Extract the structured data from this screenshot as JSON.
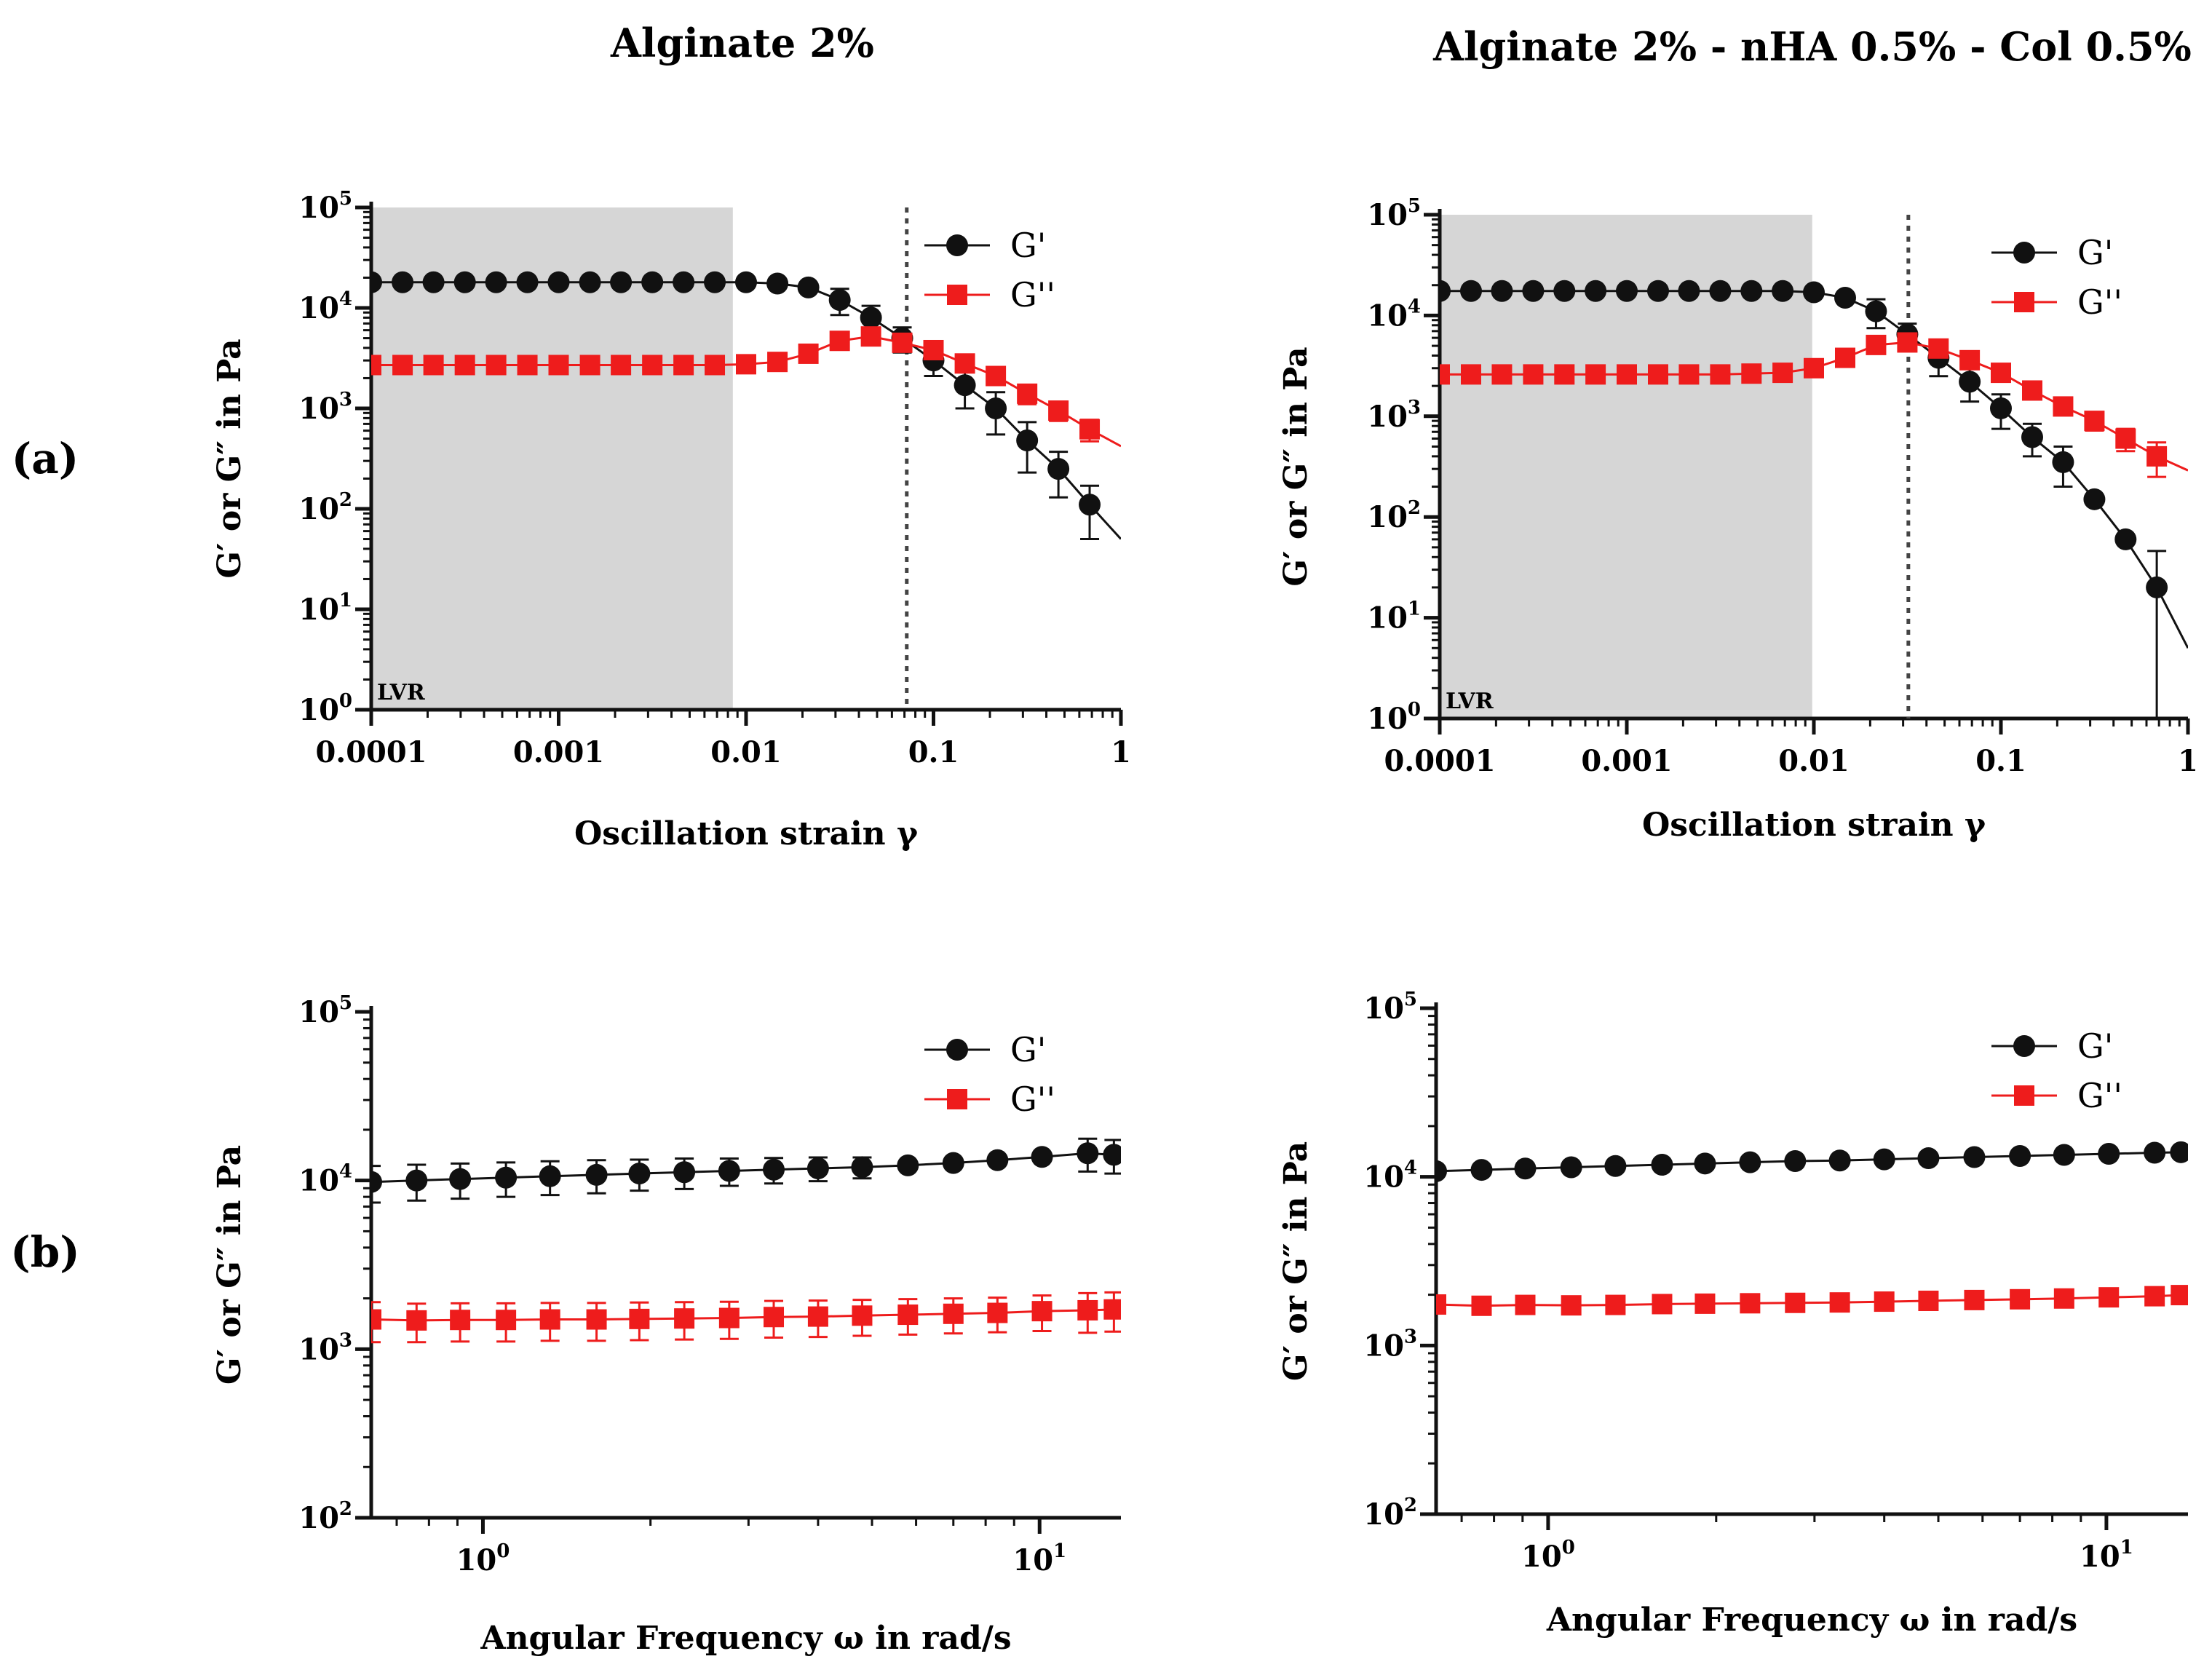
{
  "figure": {
    "column_titles": [
      "Alginate 2%",
      "Alginate 2% - nHA 0.5% - Col 0.5%"
    ],
    "row_labels": [
      "(a)",
      "(b)"
    ]
  },
  "colors": {
    "g_prime": "#111111",
    "g_double_prime": "#ee1c1c",
    "lvr_shade": "#d6d6d6",
    "axis": "#111111"
  },
  "chart_data": [
    {
      "type": "scatter",
      "row": "(a)",
      "column_title": "Alginate 2%",
      "xscale": "log",
      "yscale": "log",
      "xlim": [
        0.0001,
        1
      ],
      "ylim": [
        1,
        100000
      ],
      "xticks": [
        0.0001,
        0.001,
        0.01,
        0.1,
        1
      ],
      "xtick_labels": [
        "0.0001",
        "0.001",
        "0.01",
        "0.1",
        "1"
      ],
      "yticks": [
        1,
        10,
        100,
        1000,
        10000,
        100000
      ],
      "ytick_labels": [
        {
          "base": "10",
          "exp": "0"
        },
        {
          "base": "10",
          "exp": "1"
        },
        {
          "base": "10",
          "exp": "2"
        },
        {
          "base": "10",
          "exp": "3"
        },
        {
          "base": "10",
          "exp": "4"
        },
        {
          "base": "10",
          "exp": "5"
        }
      ],
      "xlabel": "Oscillation strain γ",
      "ylabel": "G′ or G″ in Pa",
      "legend": "top-right",
      "shaded_region": {
        "x": [
          0.0001,
          0.0085
        ],
        "label": "LVR"
      },
      "vline": {
        "x": 0.072,
        "style": "dotted"
      },
      "series": [
        {
          "name": "G'",
          "marker": "circle",
          "color": "#111111",
          "x": [
            0.0001,
            0.000147,
            0.000215,
            0.000316,
            0.000464,
            0.000681,
            0.001,
            0.00147,
            0.00215,
            0.00316,
            0.00464,
            0.00681,
            0.01,
            0.0147,
            0.0215,
            0.0316,
            0.0464,
            0.0681,
            0.1,
            0.147,
            0.215,
            0.316,
            0.464,
            0.681
          ],
          "y": [
            18000,
            18000,
            18000,
            18000,
            18000,
            18000,
            18000,
            18000,
            18000,
            18000,
            18000,
            18000,
            18000,
            17500,
            16000,
            12000,
            8000,
            5000,
            3000,
            1700,
            1000,
            480,
            250,
            110
          ],
          "err": [
            0,
            0,
            0,
            0,
            0,
            0,
            0,
            0,
            0,
            0,
            0,
            0,
            0,
            0,
            0,
            3500,
            2500,
            1400,
            900,
            700,
            450,
            250,
            120,
            60
          ],
          "fit_end": [
            1,
            50
          ]
        },
        {
          "name": "G''",
          "marker": "square",
          "color": "#ee1c1c",
          "x": [
            0.0001,
            0.000147,
            0.000215,
            0.000316,
            0.000464,
            0.000681,
            0.001,
            0.00147,
            0.00215,
            0.00316,
            0.00464,
            0.00681,
            0.01,
            0.0147,
            0.0215,
            0.0316,
            0.0464,
            0.0681,
            0.1,
            0.147,
            0.215,
            0.316,
            0.464,
            0.681
          ],
          "y": [
            2700,
            2700,
            2700,
            2700,
            2700,
            2700,
            2700,
            2700,
            2700,
            2700,
            2700,
            2700,
            2750,
            2900,
            3500,
            4700,
            5200,
            4500,
            3800,
            2800,
            2100,
            1400,
            950,
            620
          ],
          "err": [
            0,
            0,
            0,
            0,
            0,
            0,
            0,
            0,
            0,
            0,
            0,
            0,
            0,
            0,
            0,
            600,
            700,
            700,
            500,
            500,
            350,
            300,
            200,
            150
          ],
          "fit_end": [
            1,
            420
          ]
        }
      ]
    },
    {
      "type": "scatter",
      "row": "(a)",
      "column_title": "Alginate 2% - nHA 0.5% - Col 0.5%",
      "xscale": "log",
      "yscale": "log",
      "xlim": [
        0.0001,
        1
      ],
      "ylim": [
        1,
        100000
      ],
      "xticks": [
        0.0001,
        0.001,
        0.01,
        0.1,
        1
      ],
      "xtick_labels": [
        "0.0001",
        "0.001",
        "0.01",
        "0.1",
        "1"
      ],
      "yticks": [
        1,
        10,
        100,
        1000,
        10000,
        100000
      ],
      "ytick_labels": [
        {
          "base": "10",
          "exp": "0"
        },
        {
          "base": "10",
          "exp": "1"
        },
        {
          "base": "10",
          "exp": "2"
        },
        {
          "base": "10",
          "exp": "3"
        },
        {
          "base": "10",
          "exp": "4"
        },
        {
          "base": "10",
          "exp": "5"
        }
      ],
      "xlabel": "Oscillation strain γ",
      "ylabel": "G′ or G″ in Pa",
      "legend": "top-right",
      "shaded_region": {
        "x": [
          0.0001,
          0.0098
        ],
        "label": "LVR"
      },
      "vline": {
        "x": 0.032,
        "style": "dotted"
      },
      "series": [
        {
          "name": "G'",
          "marker": "circle",
          "color": "#111111",
          "x": [
            0.0001,
            0.000147,
            0.000215,
            0.000316,
            0.000464,
            0.000681,
            0.001,
            0.00147,
            0.00215,
            0.00316,
            0.00464,
            0.00681,
            0.01,
            0.0147,
            0.0215,
            0.0316,
            0.0464,
            0.0681,
            0.1,
            0.147,
            0.215,
            0.316,
            0.464,
            0.681
          ],
          "y": [
            17500,
            17500,
            17500,
            17500,
            17500,
            17500,
            17500,
            17500,
            17500,
            17500,
            17500,
            17500,
            17000,
            15000,
            11000,
            6500,
            3800,
            2200,
            1200,
            620,
            350,
            150,
            60,
            20
          ],
          "err": [
            0,
            0,
            0,
            0,
            0,
            0,
            0,
            0,
            0,
            0,
            0,
            0,
            0,
            0,
            3500,
            1800,
            1300,
            800,
            450,
            220,
            150,
            0,
            0,
            26
          ],
          "fit_end": [
            1,
            5
          ]
        },
        {
          "name": "G''",
          "marker": "square",
          "color": "#ee1c1c",
          "x": [
            0.0001,
            0.000147,
            0.000215,
            0.000316,
            0.000464,
            0.000681,
            0.001,
            0.00147,
            0.00215,
            0.00316,
            0.00464,
            0.00681,
            0.01,
            0.0147,
            0.0215,
            0.0316,
            0.0464,
            0.0681,
            0.1,
            0.147,
            0.215,
            0.316,
            0.464,
            0.681
          ],
          "y": [
            2600,
            2600,
            2600,
            2600,
            2600,
            2600,
            2600,
            2600,
            2600,
            2600,
            2650,
            2700,
            3000,
            3800,
            5100,
            5400,
            4700,
            3600,
            2700,
            1800,
            1250,
            900,
            600,
            400
          ],
          "err": [
            0,
            0,
            0,
            0,
            0,
            0,
            0,
            0,
            0,
            0,
            0,
            0,
            0,
            600,
            800,
            800,
            600,
            500,
            400,
            300,
            200,
            180,
            150,
            150
          ],
          "fit_end": [
            1,
            290
          ]
        }
      ]
    },
    {
      "type": "scatter",
      "row": "(b)",
      "column_title": "Alginate 2%",
      "xscale": "log",
      "yscale": "log",
      "xlim": [
        0.63,
        14
      ],
      "ylim": [
        100,
        100000
      ],
      "xticks": [
        1,
        10
      ],
      "xtick_labels": [
        {
          "base": "10",
          "exp": "0"
        },
        {
          "base": "10",
          "exp": "1"
        }
      ],
      "yticks": [
        100,
        1000,
        10000,
        100000
      ],
      "ytick_labels": [
        {
          "base": "10",
          "exp": "2"
        },
        {
          "base": "10",
          "exp": "3"
        },
        {
          "base": "10",
          "exp": "4"
        },
        {
          "base": "10",
          "exp": "5"
        }
      ],
      "xlabel": "Angular Frequency ω in rad/s",
      "ylabel": "G′ or G″ in Pa",
      "legend": "top-right",
      "series": [
        {
          "name": "G'",
          "marker": "circle",
          "color": "#111111",
          "x": [
            0.63,
            0.76,
            0.91,
            1.1,
            1.32,
            1.6,
            1.91,
            2.3,
            2.77,
            3.33,
            4.0,
            4.8,
            5.8,
            7.0,
            8.4,
            10.1,
            12.2,
            13.6
          ],
          "y": [
            9800,
            10000,
            10200,
            10400,
            10600,
            10800,
            11000,
            11200,
            11400,
            11600,
            11800,
            12000,
            12300,
            12700,
            13200,
            13800,
            14500,
            14200
          ],
          "err": [
            2400,
            2400,
            2400,
            2400,
            2400,
            2400,
            2300,
            2300,
            2100,
            2000,
            1900,
            1700,
            0,
            0,
            0,
            0,
            3200,
            3200
          ]
        },
        {
          "name": "G''",
          "marker": "square",
          "color": "#ee1c1c",
          "x": [
            0.63,
            0.76,
            0.91,
            1.1,
            1.32,
            1.6,
            1.91,
            2.3,
            2.77,
            3.33,
            4.0,
            4.8,
            5.8,
            7.0,
            8.4,
            10.1,
            12.2,
            13.6
          ],
          "y": [
            1500,
            1480,
            1490,
            1490,
            1500,
            1500,
            1510,
            1520,
            1530,
            1550,
            1560,
            1580,
            1600,
            1620,
            1640,
            1680,
            1700,
            1720
          ],
          "err": [
            400,
            380,
            380,
            380,
            380,
            380,
            380,
            380,
            380,
            380,
            380,
            380,
            380,
            380,
            380,
            400,
            450,
            450
          ]
        }
      ]
    },
    {
      "type": "scatter",
      "row": "(b)",
      "column_title": "Alginate 2% - nHA 0.5% - Col 0.5%",
      "xscale": "log",
      "yscale": "log",
      "xlim": [
        0.63,
        14
      ],
      "ylim": [
        100,
        100000
      ],
      "xticks": [
        1,
        10
      ],
      "xtick_labels": [
        {
          "base": "10",
          "exp": "0"
        },
        {
          "base": "10",
          "exp": "1"
        }
      ],
      "yticks": [
        100,
        1000,
        10000,
        100000
      ],
      "ytick_labels": [
        {
          "base": "10",
          "exp": "2"
        },
        {
          "base": "10",
          "exp": "3"
        },
        {
          "base": "10",
          "exp": "4"
        },
        {
          "base": "10",
          "exp": "5"
        }
      ],
      "xlabel": "Angular Frequency ω in rad/s",
      "ylabel": "G′ or G″ in Pa",
      "legend": "top-right",
      "series": [
        {
          "name": "G'",
          "marker": "circle",
          "color": "#111111",
          "x": [
            0.63,
            0.76,
            0.91,
            1.1,
            1.32,
            1.6,
            1.91,
            2.3,
            2.77,
            3.33,
            4.0,
            4.8,
            5.8,
            7.0,
            8.4,
            10.1,
            12.2,
            13.6
          ],
          "y": [
            10800,
            11000,
            11200,
            11400,
            11600,
            11800,
            12000,
            12200,
            12400,
            12500,
            12700,
            12900,
            13100,
            13300,
            13500,
            13700,
            13900,
            14000
          ],
          "err": [
            0,
            0,
            0,
            0,
            0,
            0,
            0,
            0,
            0,
            0,
            0,
            0,
            0,
            0,
            0,
            0,
            0,
            0
          ]
        },
        {
          "name": "G''",
          "marker": "square",
          "color": "#ee1c1c",
          "x": [
            0.63,
            0.76,
            0.91,
            1.1,
            1.32,
            1.6,
            1.91,
            2.3,
            2.77,
            3.33,
            4.0,
            4.8,
            5.8,
            7.0,
            8.4,
            10.1,
            12.2,
            13.6
          ],
          "y": [
            1750,
            1720,
            1740,
            1730,
            1740,
            1760,
            1770,
            1780,
            1790,
            1800,
            1820,
            1840,
            1860,
            1880,
            1900,
            1930,
            1960,
            1990
          ],
          "err": [
            0,
            0,
            0,
            0,
            0,
            0,
            0,
            0,
            0,
            0,
            0,
            0,
            0,
            0,
            0,
            0,
            0,
            0
          ]
        }
      ]
    }
  ]
}
